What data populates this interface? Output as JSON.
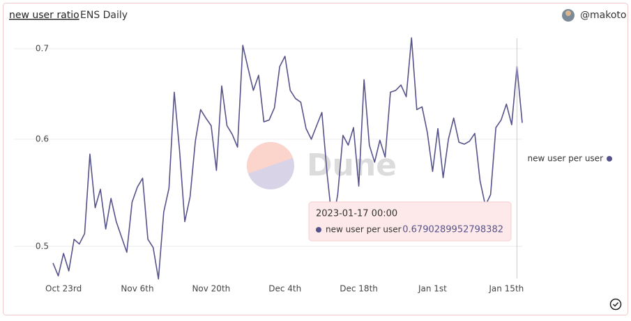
{
  "chart_data": {
    "type": "line",
    "title": "new user ratio",
    "subtitle": "ENS Daily",
    "author": "@makoto",
    "watermark": "Dune",
    "x": [
      "2022-10-21",
      "2022-10-22",
      "2022-10-23",
      "2022-10-24",
      "2022-10-25",
      "2022-10-26",
      "2022-10-27",
      "2022-10-28",
      "2022-10-29",
      "2022-10-30",
      "2022-10-31",
      "2022-11-01",
      "2022-11-02",
      "2022-11-03",
      "2022-11-04",
      "2022-11-05",
      "2022-11-06",
      "2022-11-07",
      "2022-11-08",
      "2022-11-09",
      "2022-11-10",
      "2022-11-11",
      "2022-11-12",
      "2022-11-13",
      "2022-11-14",
      "2022-11-15",
      "2022-11-16",
      "2022-11-17",
      "2022-11-18",
      "2022-11-19",
      "2022-11-20",
      "2022-11-21",
      "2022-11-22",
      "2022-11-23",
      "2022-11-24",
      "2022-11-25",
      "2022-11-26",
      "2022-11-27",
      "2022-11-28",
      "2022-11-29",
      "2022-11-30",
      "2022-12-01",
      "2022-12-02",
      "2022-12-03",
      "2022-12-04",
      "2022-12-05",
      "2022-12-06",
      "2022-12-07",
      "2022-12-08",
      "2022-12-09",
      "2022-12-10",
      "2022-12-11",
      "2022-12-12",
      "2022-12-13",
      "2022-12-14",
      "2022-12-15",
      "2022-12-16",
      "2022-12-17",
      "2022-12-18",
      "2022-12-19",
      "2022-12-20",
      "2022-12-21",
      "2022-12-22",
      "2022-12-23",
      "2022-12-24",
      "2022-12-25",
      "2022-12-26",
      "2022-12-27",
      "2022-12-28",
      "2022-12-29",
      "2022-12-30",
      "2022-12-31",
      "2023-01-01",
      "2023-01-02",
      "2023-01-03",
      "2023-01-04",
      "2023-01-05",
      "2023-01-06",
      "2023-01-07",
      "2023-01-08",
      "2023-01-09",
      "2023-01-10",
      "2023-01-11",
      "2023-01-12",
      "2023-01-13",
      "2023-01-14",
      "2023-01-15",
      "2023-01-16",
      "2023-01-17",
      "2023-01-18"
    ],
    "series": [
      {
        "name": "new user per user",
        "color": "#56528a",
        "values": [
          0.486,
          0.4755,
          0.494,
          0.4795,
          0.506,
          0.502,
          0.511,
          0.585,
          0.534,
          0.551,
          0.515,
          0.5425,
          0.5215,
          0.508,
          0.495,
          0.539,
          0.553,
          0.5615,
          0.506,
          0.499,
          0.473,
          0.53,
          0.552,
          0.65,
          0.589,
          0.5215,
          0.544,
          0.598,
          0.631,
          0.622,
          0.614,
          0.569,
          0.657,
          0.614,
          0.605,
          0.592,
          0.704,
          0.677,
          0.652,
          0.669,
          0.618,
          0.62,
          0.633,
          0.679,
          0.691,
          0.652,
          0.643,
          0.639,
          0.611,
          0.6,
          0.614,
          0.628,
          0.565,
          0.52,
          0.546,
          0.604,
          0.594,
          0.612,
          0.554,
          0.664,
          0.594,
          0.577,
          0.599,
          0.582,
          0.65,
          0.652,
          0.658,
          0.645,
          0.713,
          0.631,
          0.634,
          0.607,
          0.568,
          0.611,
          0.562,
          0.6,
          0.622,
          0.597,
          0.595,
          0.598,
          0.606,
          0.559,
          0.536,
          0.546,
          0.612,
          0.62,
          0.637,
          0.615,
          0.6790289952798382,
          0.617
        ]
      }
    ],
    "xlim": [
      "2022-10-21",
      "2023-01-18"
    ],
    "xticks": [
      {
        "value": "2022-10-23",
        "label": "Oct 23rd"
      },
      {
        "value": "2022-11-06",
        "label": "Nov 6th"
      },
      {
        "value": "2022-11-20",
        "label": "Nov 20th"
      },
      {
        "value": "2022-12-04",
        "label": "Dec 4th"
      },
      {
        "value": "2022-12-18",
        "label": "Dec 18th"
      },
      {
        "value": "2023-01-01",
        "label": "Jan 1st"
      },
      {
        "value": "2023-01-15",
        "label": "Jan 15th"
      }
    ],
    "ylim": [
      0.47,
      0.715
    ],
    "yticks": [
      0.5,
      0.6,
      0.7
    ],
    "log_y": true,
    "grid": true,
    "legend": "right",
    "tooltip": {
      "label": "2023-01-17 00:00",
      "index": 88
    }
  }
}
